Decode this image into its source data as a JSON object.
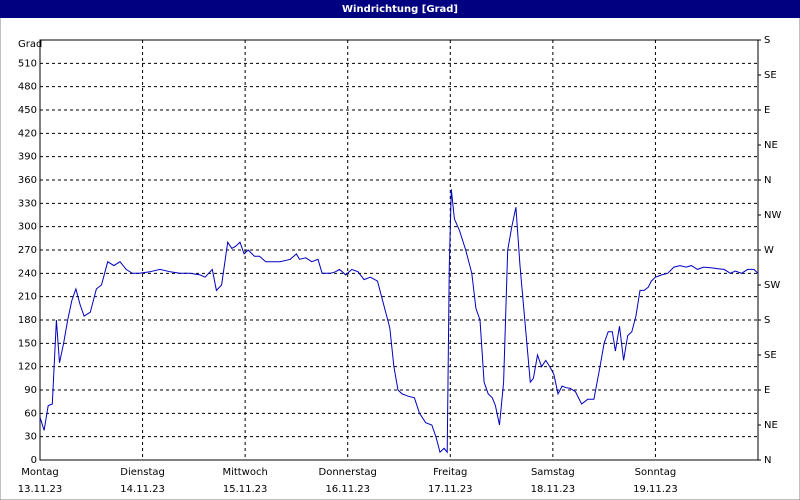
{
  "chart_data": {
    "type": "line",
    "title": "Windrichtung [Grad]",
    "y_label": "Grad",
    "xlim": [
      0,
      7
    ],
    "xticks": [
      {
        "value": 0,
        "label": "Montag"
      },
      {
        "value": 1,
        "label": "Dienstag"
      },
      {
        "value": 2,
        "label": "Mittwoch"
      },
      {
        "value": 3,
        "label": "Donnerstag"
      },
      {
        "value": 4,
        "label": "Freitag"
      },
      {
        "value": 5,
        "label": "Samstag"
      },
      {
        "value": 6,
        "label": "Sonntag"
      }
    ],
    "xtick_dates": [
      "13.11.23",
      "14.11.23",
      "15.11.23",
      "16.11.23",
      "17.11.23",
      "18.11.23",
      "19.11.23"
    ],
    "ylim": [
      0,
      540
    ],
    "yticks": [
      0,
      30,
      60,
      90,
      120,
      150,
      180,
      210,
      240,
      270,
      300,
      330,
      360,
      390,
      420,
      450,
      480,
      510
    ],
    "y2lim": [
      0,
      540
    ],
    "y2ticks": [
      {
        "value": 0,
        "label": "N"
      },
      {
        "value": 45,
        "label": "NE"
      },
      {
        "value": 90,
        "label": "E"
      },
      {
        "value": 135,
        "label": "SE"
      },
      {
        "value": 180,
        "label": "S"
      },
      {
        "value": 225,
        "label": "SW"
      },
      {
        "value": 270,
        "label": "W"
      },
      {
        "value": 315,
        "label": "NW"
      },
      {
        "value": 360,
        "label": "N"
      },
      {
        "value": 405,
        "label": "NE"
      },
      {
        "value": 450,
        "label": "E"
      },
      {
        "value": 495,
        "label": "SE"
      },
      {
        "value": 540,
        "label": "S"
      }
    ],
    "grid": true,
    "series": [
      {
        "color": "#0000c0",
        "x": [
          0,
          0.04,
          0.08,
          0.12,
          0.16,
          0.19,
          0.23,
          0.27,
          0.31,
          0.35,
          0.39,
          0.43,
          0.49,
          0.55,
          0.6,
          0.66,
          0.72,
          0.78,
          0.84,
          0.9,
          0.97,
          1.07,
          1.17,
          1.27,
          1.36,
          1.46,
          1.56,
          1.61,
          1.68,
          1.72,
          1.77,
          1.83,
          1.87,
          1.91,
          1.95,
          1.99,
          2.03,
          2.09,
          2.14,
          2.2,
          2.26,
          2.34,
          2.44,
          2.5,
          2.53,
          2.59,
          2.65,
          2.71,
          2.75,
          2.83,
          2.88,
          2.92,
          2.98,
          3.04,
          3.1,
          3.16,
          3.22,
          3.29,
          3.35,
          3.41,
          3.45,
          3.49,
          3.53,
          3.59,
          3.65,
          3.7,
          3.76,
          3.82,
          3.86,
          3.9,
          3.94,
          3.97,
          3.99,
          4.01,
          4.04,
          4.09,
          4.15,
          4.21,
          4.25,
          4.29,
          4.33,
          4.37,
          4.41,
          4.44,
          4.48,
          4.52,
          4.56,
          4.6,
          4.64,
          4.68,
          4.72,
          4.78,
          4.81,
          4.85,
          4.89,
          4.93,
          4.97,
          5.01,
          5.05,
          5.09,
          5.13,
          5.17,
          5.22,
          5.28,
          5.34,
          5.4,
          5.46,
          5.5,
          5.54,
          5.58,
          5.61,
          5.65,
          5.69,
          5.73,
          5.77,
          5.81,
          5.85,
          5.89,
          5.93,
          5.96,
          6.0,
          6.06,
          6.12,
          6.18,
          6.24,
          6.3,
          6.35,
          6.41,
          6.47,
          6.55,
          6.61,
          6.67,
          6.73,
          6.78,
          6.84,
          6.9,
          6.96,
          7.0
        ],
        "values": [
          55,
          38,
          70,
          72,
          180,
          125,
          150,
          180,
          205,
          220,
          200,
          185,
          190,
          220,
          225,
          255,
          250,
          255,
          245,
          240,
          240,
          242,
          245,
          242,
          240,
          240,
          238,
          235,
          245,
          218,
          225,
          280,
          272,
          275,
          280,
          265,
          270,
          262,
          262,
          255,
          255,
          255,
          258,
          265,
          258,
          260,
          255,
          258,
          240,
          240,
          242,
          245,
          238,
          245,
          242,
          232,
          235,
          230,
          200,
          170,
          120,
          90,
          85,
          82,
          80,
          60,
          48,
          45,
          30,
          10,
          15,
          10,
          250,
          348,
          310,
          295,
          270,
          240,
          195,
          180,
          100,
          85,
          80,
          70,
          45,
          100,
          270,
          300,
          325,
          250,
          190,
          100,
          105,
          135,
          120,
          128,
          120,
          110,
          85,
          95,
          93,
          92,
          88,
          72,
          78,
          78,
          120,
          150,
          165,
          165,
          140,
          172,
          128,
          160,
          165,
          185,
          218,
          218,
          222,
          230,
          235,
          238,
          240,
          248,
          250,
          248,
          250,
          245,
          248,
          247,
          246,
          245,
          240,
          243,
          240,
          245,
          245,
          240
        ]
      }
    ]
  }
}
